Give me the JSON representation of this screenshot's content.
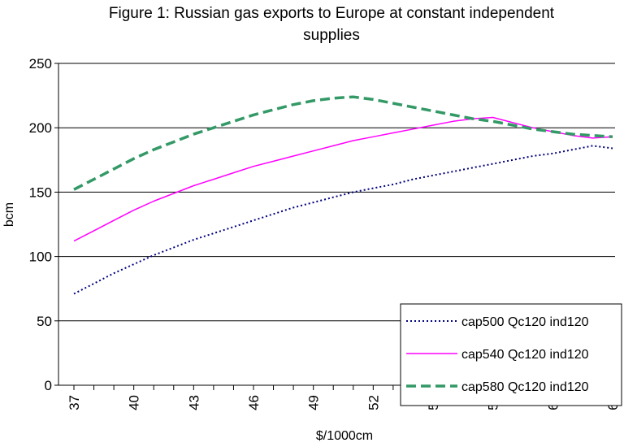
{
  "chart_data": {
    "type": "line",
    "title_line1": "Figure 1: Russian gas exports to Europe at constant independent",
    "title_line2": "supplies",
    "xlabel": "$/1000cm",
    "ylabel": "bcm",
    "ylim": [
      0,
      250
    ],
    "yticks": [
      0,
      50,
      100,
      150,
      200,
      250
    ],
    "x": [
      37,
      38,
      39,
      40,
      41,
      42,
      43,
      44,
      45,
      46,
      47,
      48,
      49,
      50,
      51,
      52,
      53,
      54,
      55,
      56,
      57,
      58,
      59,
      60,
      61,
      62,
      63,
      64
    ],
    "xtick_labels": [
      "37",
      "40",
      "43",
      "46",
      "49",
      "52",
      "55",
      "58",
      "61",
      "64"
    ],
    "xtick_positions": [
      37,
      40,
      43,
      46,
      49,
      52,
      55,
      58,
      61,
      64
    ],
    "grid": "horizontal",
    "legend_position": "bottom-right",
    "series": [
      {
        "name": "cap500 Qc120 ind120",
        "color": "#000080",
        "style": "dotted",
        "values": [
          71,
          79,
          87,
          94,
          101,
          107,
          113,
          118,
          123,
          128,
          133,
          138,
          142,
          146,
          150,
          153,
          156,
          160,
          163,
          166,
          169,
          172,
          175,
          178,
          180,
          183,
          186,
          184
        ]
      },
      {
        "name": "cap540 Qc120 ind120",
        "color": "#ff00ff",
        "style": "solid",
        "values": [
          112,
          120,
          128,
          136,
          143,
          149,
          155,
          160,
          165,
          170,
          174,
          178,
          182,
          186,
          190,
          193,
          196,
          199,
          202,
          205,
          207,
          208,
          204,
          200,
          197,
          194,
          192,
          193
        ]
      },
      {
        "name": "cap580 Qc120 ind120",
        "color": "#339966",
        "style": "dashed",
        "values": [
          152,
          160,
          168,
          176,
          183,
          189,
          195,
          200,
          205,
          210,
          214,
          218,
          221,
          223,
          224,
          222,
          219,
          216,
          213,
          210,
          207,
          205,
          202,
          199,
          197,
          195,
          194,
          193
        ]
      }
    ]
  }
}
